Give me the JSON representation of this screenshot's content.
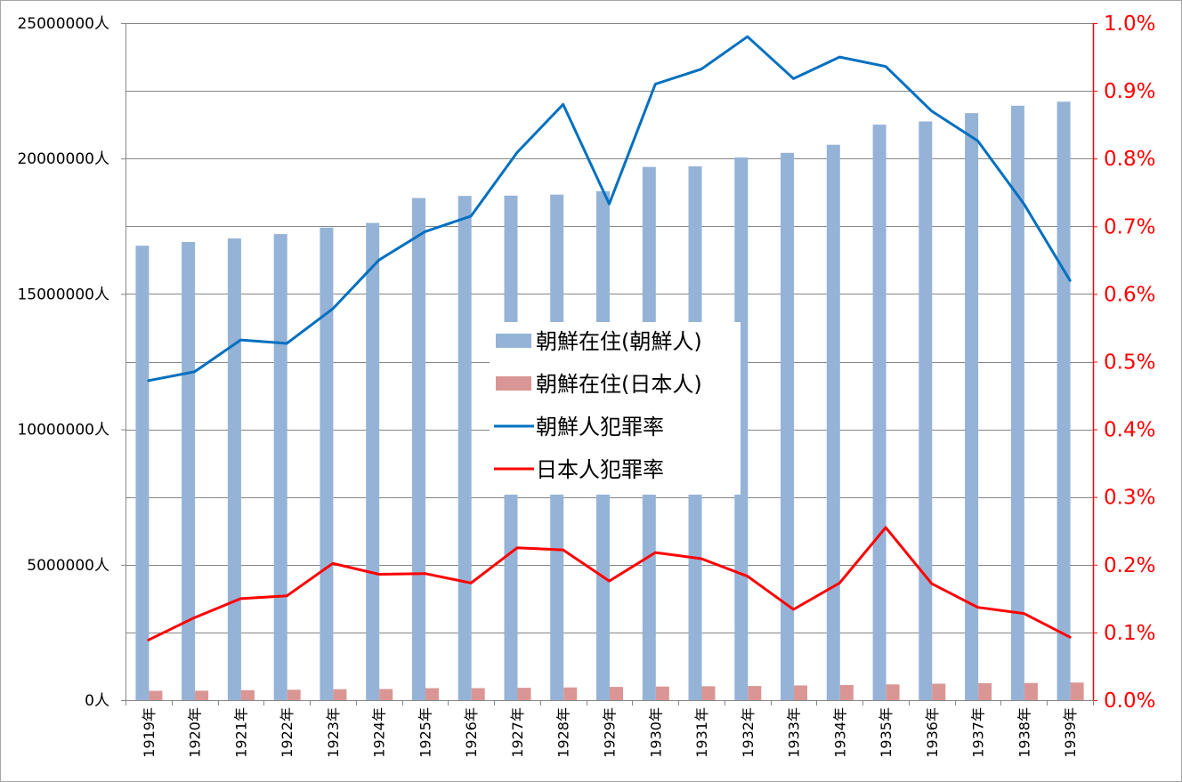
{
  "chart_data": {
    "type": "bar",
    "categories": [
      "1919年",
      "1920年",
      "1921年",
      "1922年",
      "1923年",
      "1924年",
      "1925年",
      "1926年",
      "1927年",
      "1928年",
      "1929年",
      "1930年",
      "1931年",
      "1932年",
      "1933年",
      "1934年",
      "1935年",
      "1936年",
      "1937年",
      "1938年",
      "1939年"
    ],
    "series": [
      {
        "name": "朝鮮在住(朝鮮人)",
        "type": "bar",
        "axis": "left",
        "color": "#95b3d7",
        "values": [
          16780000,
          16920000,
          17050000,
          17210000,
          17450000,
          17620000,
          18540000,
          18620000,
          18630000,
          18670000,
          18790000,
          19690000,
          19710000,
          20040000,
          20210000,
          20510000,
          21250000,
          21370000,
          21680000,
          21950000,
          22100000
        ]
      },
      {
        "name": "朝鮮在住(日本人)",
        "type": "bar",
        "axis": "left",
        "color": "#da9694",
        "values": [
          346000,
          348000,
          367000,
          386000,
          403000,
          411000,
          443000,
          443000,
          455000,
          470000,
          488000,
          502000,
          514000,
          523000,
          543000,
          560000,
          583000,
          609000,
          629000,
          633000,
          650000
        ]
      },
      {
        "name": "朝鮮人犯罪率",
        "type": "line",
        "axis": "right",
        "color": "#0070c0",
        "values": [
          0.472,
          0.485,
          0.532,
          0.527,
          0.578,
          0.65,
          0.692,
          0.715,
          0.809,
          0.88,
          0.733,
          0.91,
          0.932,
          0.98,
          0.918,
          0.95,
          0.936,
          0.87,
          0.826,
          0.733,
          0.62
        ]
      },
      {
        "name": "日本人犯罪率",
        "type": "line",
        "axis": "right",
        "color": "#ff0000",
        "values": [
          0.089,
          0.122,
          0.15,
          0.154,
          0.202,
          0.186,
          0.187,
          0.173,
          0.225,
          0.222,
          0.176,
          0.218,
          0.209,
          0.183,
          0.134,
          0.173,
          0.255,
          0.172,
          0.137,
          0.128,
          0.093
        ]
      }
    ],
    "y_left": {
      "ticks": [
        "0人",
        "5000000人",
        "10000000人",
        "15000000人",
        "20000000人",
        "25000000人"
      ],
      "ylim": [
        0,
        25000000
      ],
      "color": "#000000"
    },
    "y_right": {
      "ticks": [
        "0.0%",
        "0.1%",
        "0.2%",
        "0.3%",
        "0.4%",
        "0.5%",
        "0.6%",
        "0.7%",
        "0.8%",
        "0.9%",
        "1.0%"
      ],
      "ylim": [
        0,
        1.0
      ],
      "color": "#ff0000"
    },
    "title": "",
    "xlabel": "",
    "ylabel": "",
    "grid": true,
    "legend_position": "center"
  }
}
